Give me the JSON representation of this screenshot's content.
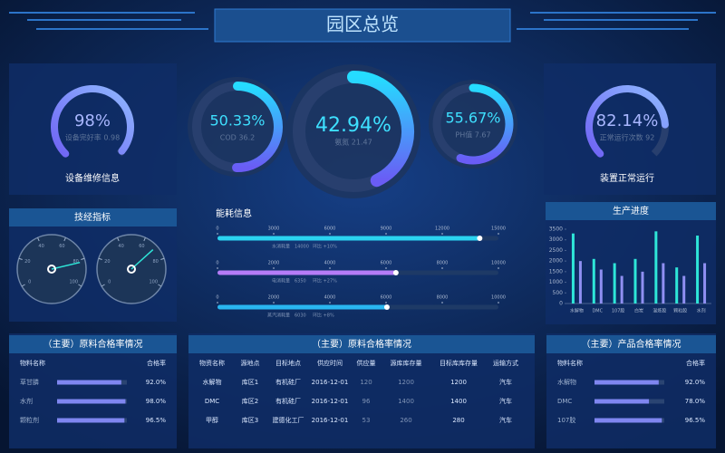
{
  "header": {
    "title": "园区总览"
  },
  "rings": [
    {
      "style": "arc",
      "value": 98,
      "label": "98%",
      "detail": "设备完好率 0.98",
      "caption": "设备维修信息"
    },
    {
      "style": "full",
      "value": 50.33,
      "label": "50.33%",
      "detail": "COD 36.2"
    },
    {
      "style": "full",
      "value": 42.94,
      "label": "42.94%",
      "detail": "氨氮 21.47"
    },
    {
      "style": "full",
      "value": 55.67,
      "label": "55.67%",
      "detail": "PH值 7.67"
    },
    {
      "style": "arc",
      "value": 82.14,
      "label": "82.14%",
      "detail": "正常运行次数 92",
      "caption": "装置正常运行"
    }
  ],
  "indicators": {
    "title": "技经指标",
    "scale": [
      0,
      100
    ],
    "ticks": [
      0,
      20,
      40,
      60,
      80,
      100
    ],
    "gauges": [
      {
        "value": 82
      },
      {
        "value": 70
      }
    ]
  },
  "energy": {
    "title": "能耗信息",
    "items": [
      {
        "name": "水消耗量",
        "value": 14000,
        "change": "环比 +10%",
        "max": 15000,
        "ticks": [
          0,
          3000,
          6000,
          9000,
          12000,
          15000
        ],
        "color": "#2bd3f0"
      },
      {
        "name": "电消耗量",
        "value": 6350,
        "change": "环比 +27%",
        "max": 10000,
        "ticks": [
          0,
          2000,
          4000,
          6000,
          8000,
          10000
        ],
        "color": "#b57cf7"
      },
      {
        "name": "蒸汽消耗量",
        "value": 6030,
        "change": "环比 +8%",
        "max": 10000,
        "ticks": [
          0,
          2000,
          4000,
          6000,
          8000,
          10000
        ],
        "color": "#29b6f0"
      }
    ]
  },
  "production": {
    "type": "bar",
    "title": "生产进度",
    "categories": [
      "水解物",
      "DMC",
      "107胶",
      "白炭",
      "混炼胶",
      "颗粒胶",
      "水剂"
    ],
    "series": [
      {
        "color": "#2ee6d8",
        "values": [
          3300,
          2100,
          1900,
          2100,
          3400,
          1700,
          3200
        ]
      },
      {
        "color": "#8f8ff2",
        "values": [
          2000,
          1600,
          1300,
          1500,
          1900,
          1300,
          1900
        ]
      }
    ],
    "ylim": [
      0,
      3500
    ],
    "yticks": [
      0,
      500,
      1000,
      1500,
      2000,
      2500,
      3000,
      3500
    ]
  },
  "material_rate": {
    "title": "（主要）原料合格率情况",
    "headers": [
      "物料名称",
      "合格率"
    ],
    "rows": [
      {
        "name": "草甘膦",
        "value": 92,
        "label": "92.0%"
      },
      {
        "name": "水剂",
        "value": 98,
        "label": "98.0%"
      },
      {
        "name": "颗粒剂",
        "value": 96.5,
        "label": "96.5%"
      }
    ]
  },
  "supply": {
    "title": "（主要）原料合格率情况",
    "headers": [
      "物资名称",
      "源地点",
      "目标地点",
      "供应时间",
      "供应量",
      "源库库存量",
      "目标库库存量",
      "运输方式"
    ],
    "rows": [
      [
        "水解物",
        "库区1",
        "有机硅厂",
        "2016-12-01",
        120,
        1200,
        1200,
        "汽车"
      ],
      [
        "DMC",
        "库区2",
        "有机硅厂",
        "2016-12-01",
        96,
        1400,
        1400,
        "汽车"
      ],
      [
        "甲醇",
        "库区3",
        "建德化工厂",
        "2016-12-01",
        53,
        260,
        280,
        "汽车"
      ]
    ]
  },
  "product_rate": {
    "title": "（主要）产品合格率情况",
    "headers": [
      "物料名称",
      "合格率"
    ],
    "rows": [
      {
        "name": "水解物",
        "value": 92,
        "label": "92.0%"
      },
      {
        "name": "DMC",
        "value": 78,
        "label": "78.0%"
      },
      {
        "name": "107胶",
        "value": 96.5,
        "label": "96.5%"
      }
    ]
  }
}
